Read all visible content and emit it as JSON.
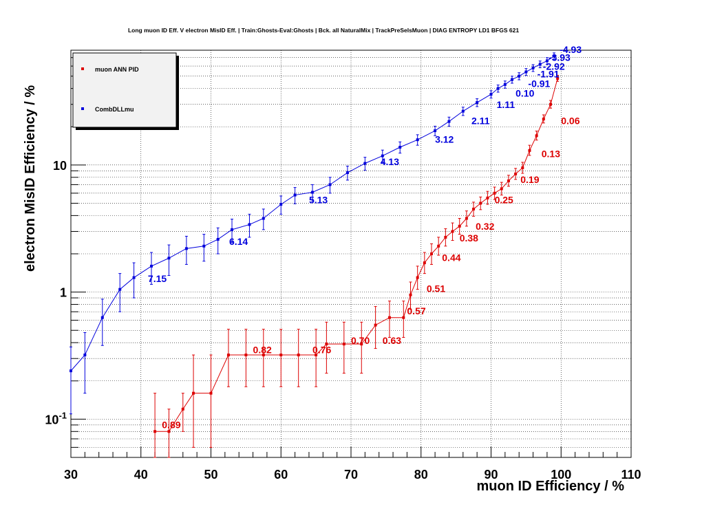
{
  "chart_data": {
    "type": "scatter",
    "title": "Long muon ID Eff. V electron MisID Eff. | Train:Ghosts-Eval:Ghosts | Bck. all NaturalMix | TrackPreSelsMuon | DIAG ENTROPY LD1 BFGS 621",
    "xlabel": "muon ID Efficiency / %",
    "ylabel": "electron MisID Efficiency / %",
    "xlim": [
      30,
      110
    ],
    "ylim": [
      0.05,
      80
    ],
    "yscale": "log",
    "grid": true,
    "legend_position": "top-left",
    "x_ticks": [
      "30",
      "40",
      "50",
      "60",
      "70",
      "80",
      "90",
      "100",
      "110"
    ],
    "y_ticks": [
      "10^-1",
      "1",
      "10"
    ],
    "series": [
      {
        "name": "muon ANN PID",
        "color": "#dd0000",
        "x": [
          42,
          44,
          46,
          47.5,
          50,
          52.5,
          55,
          57.5,
          60,
          62.5,
          65,
          66.5,
          69,
          71.5,
          73.5,
          75.5,
          77.5,
          78.5,
          79.5,
          80.5,
          81.5,
          82.5,
          83.5,
          84.5,
          85.5,
          86.5,
          87.5,
          88.5,
          89.5,
          90.5,
          91.5,
          92.5,
          93.5,
          94.5,
          95.5,
          96.5,
          97.5,
          98.5,
          99.5
        ],
        "y": [
          0.08,
          0.08,
          0.12,
          0.16,
          0.16,
          0.32,
          0.32,
          0.32,
          0.32,
          0.32,
          0.32,
          0.39,
          0.39,
          0.39,
          0.55,
          0.63,
          0.63,
          0.95,
          1.3,
          1.7,
          2.0,
          2.3,
          2.7,
          3.0,
          3.3,
          3.8,
          4.5,
          5.0,
          5.5,
          6.0,
          6.5,
          7.5,
          8.5,
          9.5,
          13,
          17,
          23,
          30,
          48
        ],
        "err_up": [
          0.08,
          0.04,
          0.04,
          0.16,
          0.16,
          0.19,
          0.19,
          0.19,
          0.19,
          0.19,
          0.19,
          0.19,
          0.19,
          0.19,
          0.22,
          0.22,
          0.22,
          0.25,
          0.3,
          0.35,
          0.4,
          0.4,
          0.45,
          0.5,
          0.5,
          0.55,
          0.6,
          0.6,
          0.7,
          0.7,
          0.8,
          0.8,
          0.9,
          1.0,
          1.3,
          1.5,
          1.8,
          2.2,
          2.8
        ],
        "err_down": [
          0.04,
          0.04,
          0.04,
          0.1,
          0.1,
          0.14,
          0.14,
          0.14,
          0.14,
          0.14,
          0.14,
          0.16,
          0.16,
          0.16,
          0.19,
          0.19,
          0.19,
          0.22,
          0.25,
          0.3,
          0.35,
          0.35,
          0.4,
          0.45,
          0.45,
          0.5,
          0.55,
          0.55,
          0.6,
          0.65,
          0.7,
          0.7,
          0.8,
          0.9,
          1.1,
          1.3,
          1.6,
          2.0,
          2.5
        ]
      },
      {
        "name": "CombDLLmu",
        "color": "#0000dd",
        "x": [
          30,
          32,
          34.5,
          37,
          39,
          41.5,
          44,
          46.5,
          49,
          51,
          53,
          55.5,
          57.5,
          60,
          62,
          64.5,
          67,
          69.5,
          72,
          74.5,
          77,
          79.5,
          82,
          84,
          86,
          88,
          90,
          91,
          92,
          93,
          94,
          95,
          96,
          97,
          98,
          99
        ],
        "y": [
          0.24,
          0.32,
          0.63,
          1.05,
          1.3,
          1.6,
          1.85,
          2.2,
          2.3,
          2.6,
          3.1,
          3.4,
          3.8,
          4.9,
          5.8,
          6.1,
          7.0,
          8.7,
          10.3,
          11.8,
          13.8,
          15.8,
          18.6,
          22,
          26.5,
          31,
          36,
          40,
          43,
          47,
          50,
          54,
          58,
          62,
          66,
          72
        ],
        "err_up": [
          0.13,
          0.16,
          0.25,
          0.35,
          0.4,
          0.45,
          0.5,
          0.55,
          0.55,
          0.6,
          0.65,
          0.7,
          0.7,
          0.8,
          0.85,
          0.9,
          1.0,
          1.1,
          1.2,
          1.3,
          1.4,
          1.5,
          1.6,
          1.8,
          2.0,
          2.2,
          2.4,
          2.6,
          2.8,
          3.0,
          3.2,
          3.4,
          3.6,
          3.8,
          4.0,
          4.2
        ],
        "err_down": [
          0.13,
          0.16,
          0.25,
          0.35,
          0.4,
          0.45,
          0.5,
          0.55,
          0.55,
          0.6,
          0.65,
          0.7,
          0.7,
          0.8,
          0.85,
          0.9,
          1.0,
          1.1,
          1.2,
          1.3,
          1.4,
          1.5,
          1.6,
          1.8,
          2.0,
          2.2,
          2.4,
          2.6,
          2.8,
          3.0,
          3.2,
          3.4,
          3.6,
          3.8,
          4.0,
          4.2
        ]
      }
    ],
    "annotations": [
      {
        "text": "0.89",
        "x": 43,
        "y": 0.085,
        "color": "#dd0000"
      },
      {
        "text": "0.82",
        "x": 56,
        "y": 0.33,
        "color": "#dd0000"
      },
      {
        "text": "0.76",
        "x": 64.5,
        "y": 0.33,
        "color": "#dd0000"
      },
      {
        "text": "0.70",
        "x": 70,
        "y": 0.39,
        "color": "#dd0000"
      },
      {
        "text": "0.63",
        "x": 74.5,
        "y": 0.39,
        "color": "#dd0000"
      },
      {
        "text": "0.57",
        "x": 78,
        "y": 0.67,
        "color": "#dd0000"
      },
      {
        "text": "0.51",
        "x": 80.8,
        "y": 1.0,
        "color": "#dd0000"
      },
      {
        "text": "0.44",
        "x": 83,
        "y": 1.75,
        "color": "#dd0000"
      },
      {
        "text": "0.38",
        "x": 85.5,
        "y": 2.5,
        "color": "#dd0000"
      },
      {
        "text": "0.32",
        "x": 87.8,
        "y": 3.1,
        "color": "#dd0000"
      },
      {
        "text": "0.25",
        "x": 90.5,
        "y": 5.0,
        "color": "#dd0000"
      },
      {
        "text": "0.19",
        "x": 94.2,
        "y": 7.2,
        "color": "#dd0000"
      },
      {
        "text": "0.13",
        "x": 97.2,
        "y": 11.5,
        "color": "#dd0000"
      },
      {
        "text": "0.06",
        "x": 100,
        "y": 21,
        "color": "#dd0000"
      },
      {
        "text": "7.15",
        "x": 41,
        "y": 1.2,
        "color": "#0000dd"
      },
      {
        "text": "6.14",
        "x": 52.6,
        "y": 2.35,
        "color": "#0000dd"
      },
      {
        "text": "5.13",
        "x": 64,
        "y": 5.0,
        "color": "#0000dd"
      },
      {
        "text": "4.13",
        "x": 74.2,
        "y": 10.0,
        "color": "#0000dd"
      },
      {
        "text": "3.12",
        "x": 82,
        "y": 15.0,
        "color": "#0000dd"
      },
      {
        "text": "2.11",
        "x": 87.2,
        "y": 21,
        "color": "#0000dd"
      },
      {
        "text": "1.11",
        "x": 90.8,
        "y": 28,
        "color": "#0000dd"
      },
      {
        "text": "0.10",
        "x": 93.5,
        "y": 34.5,
        "color": "#0000dd"
      },
      {
        "text": "-0.91",
        "x": 95.3,
        "y": 41,
        "color": "#0000dd"
      },
      {
        "text": "-1.91",
        "x": 96.6,
        "y": 49,
        "color": "#0000dd"
      },
      {
        "text": "-2.92",
        "x": 97.4,
        "y": 56,
        "color": "#0000dd"
      },
      {
        "text": "-3.93",
        "x": 98.2,
        "y": 66,
        "color": "#0000dd"
      },
      {
        "text": "-4.93",
        "x": 99.8,
        "y": 76,
        "color": "#0000dd"
      }
    ]
  }
}
